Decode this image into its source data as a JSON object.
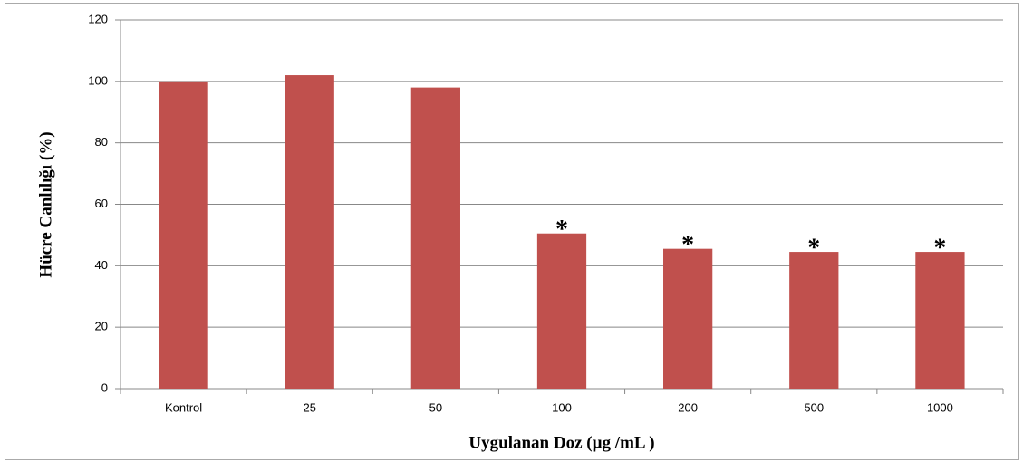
{
  "chart_data": {
    "type": "bar",
    "x_label": "Uygulanan  Doz (µg /mL )",
    "y_label": "Hücre Canlılığı  (%)",
    "categories": [
      "Kontrol",
      "25",
      "50",
      "100",
      "200",
      "500",
      "1000"
    ],
    "values": [
      100,
      102,
      98,
      50.5,
      45.5,
      44.5,
      44.5
    ],
    "markers": [
      null,
      null,
      null,
      "*",
      "*",
      "*",
      "*"
    ],
    "color": "#c0504d",
    "ylim": [
      0,
      120
    ],
    "yticks": [
      0,
      20,
      40,
      60,
      80,
      100,
      120
    ],
    "grid": true
  }
}
